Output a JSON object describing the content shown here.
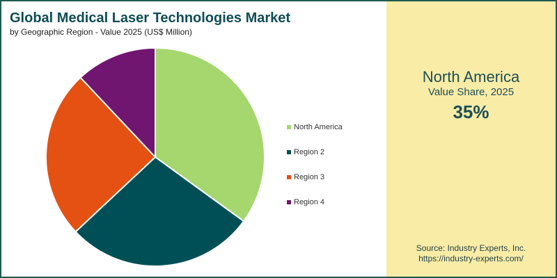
{
  "header": {
    "title": "Global Medical Laser Technologies Market",
    "subtitle": "by Geographic Region - Value 2025 (US$ Million)"
  },
  "chart_data": {
    "type": "pie",
    "title": "Global Medical Laser Technologies Market",
    "subtitle": "by Geographic Region - Value 2025 (US$ Million)",
    "legend_position": "right",
    "start_angle_deg": 0,
    "direction": "clockwise",
    "slices": [
      {
        "label": "North America",
        "value": 35,
        "color": "#a5d76e"
      },
      {
        "label": "Region 2",
        "value": 28,
        "color": "#004f56"
      },
      {
        "label": "Region 3",
        "value": 25,
        "color": "#e45112"
      },
      {
        "label": "Region 4",
        "value": 12,
        "color": "#701670"
      }
    ]
  },
  "highlight": {
    "region": "North America",
    "subtitle": "Value Share, 2025",
    "value": "35%"
  },
  "source": {
    "line1": "Source: Industry Experts, Inc.",
    "line2": "https://industry-experts.com/"
  },
  "colors": {
    "border": "#1e5b4f",
    "panel_bg": "#f9eca7",
    "title": "#0f4d55",
    "panel_text": "#1e4f54"
  }
}
